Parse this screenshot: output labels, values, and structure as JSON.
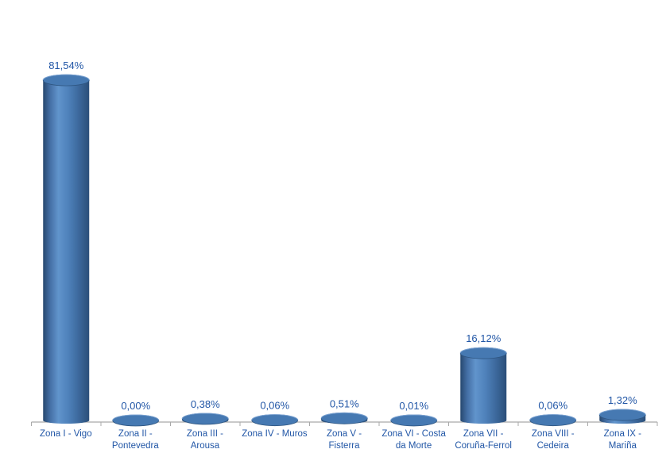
{
  "chart_data": {
    "type": "bar",
    "subtype": "3d-cylinder",
    "title": "",
    "xlabel": "",
    "ylabel": "",
    "grid": false,
    "legend": false,
    "y_axis_visible": false,
    "ylim": [
      0,
      86
    ],
    "categories": [
      "Zona I - Vigo",
      "Zona II - Pontevedra",
      "Zona III - Arousa",
      "Zona IV - Muros",
      "Zona V - Fisterra",
      "Zona VI - Costa da Morte",
      "Zona VII - Coruña-Ferrol",
      "Zona VIII - Cedeira",
      "Zona IX - Mariña"
    ],
    "values": [
      81.54,
      0.0,
      0.38,
      0.06,
      0.51,
      0.01,
      16.12,
      0.06,
      1.32
    ],
    "data_labels": [
      "81,54%",
      "0,00%",
      "0,38%",
      "0,06%",
      "0,51%",
      "0,01%",
      "16,12%",
      "0,06%",
      "1,32%"
    ],
    "style": {
      "bar_color": "#4F81BD",
      "body_gradient": [
        [
          "0",
          "#27486F"
        ],
        [
          "0.15",
          "#446FA5"
        ],
        [
          "0.33",
          "#6194CC"
        ],
        [
          "0.55",
          "#4E81BA"
        ],
        [
          "0.80",
          "#3A6598"
        ],
        [
          "1",
          "#2B4F79"
        ]
      ],
      "top_fill": "#4679B2",
      "top_edge": "#2E5580",
      "top_highlight": "#80A9D9",
      "label_color": "#2156A6",
      "axis_color": "#A9A9A9",
      "background": "#FFFFFF"
    }
  }
}
